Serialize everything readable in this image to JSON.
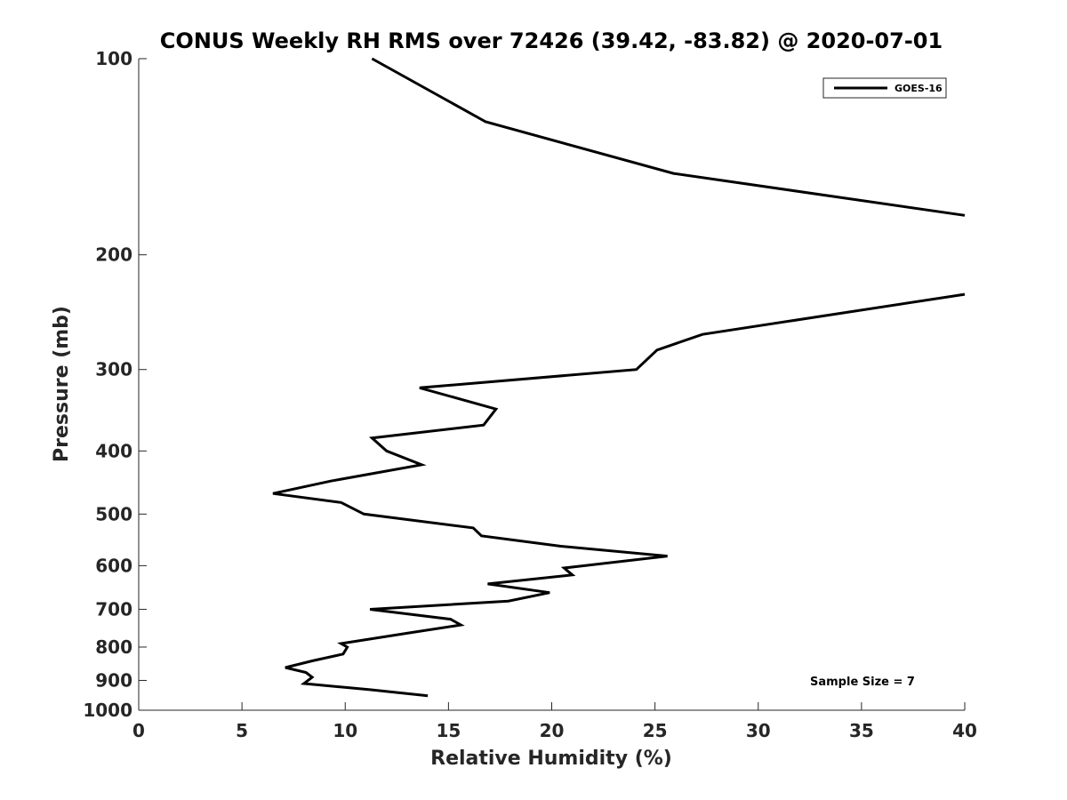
{
  "chart_data": {
    "type": "line",
    "title": "CONUS Weekly RH RMS over 72426 (39.42, -83.82) @ 2020-07-01",
    "xlabel": "Relative Humidity (%)",
    "ylabel": "Pressure (mb)",
    "xlim": [
      0,
      40
    ],
    "ylim": [
      100,
      1000
    ],
    "y_scale": "log",
    "y_reversed": true,
    "grid": false,
    "legend_position": "top-right",
    "x_ticks": [
      0,
      5,
      10,
      15,
      20,
      25,
      30,
      35,
      40
    ],
    "y_ticks": [
      100,
      200,
      300,
      400,
      500,
      600,
      700,
      800,
      900,
      1000
    ],
    "annotation": "Sample Size = 7",
    "series": [
      {
        "name": "GOES-16",
        "color": "#000000",
        "points": [
          [
            11.3,
            100
          ],
          [
            16.8,
            125
          ],
          [
            25.9,
            150
          ],
          [
            40.0,
            174
          ],
          [
            null,
            null
          ],
          [
            40.0,
            230
          ],
          [
            27.3,
            265
          ],
          [
            25.1,
            280
          ],
          [
            24.1,
            300
          ],
          [
            13.6,
            320
          ],
          [
            17.3,
            345
          ],
          [
            16.7,
            365
          ],
          [
            11.3,
            382
          ],
          [
            12.0,
            400
          ],
          [
            13.7,
            420
          ],
          [
            9.3,
            445
          ],
          [
            6.5,
            465
          ],
          [
            9.8,
            480
          ],
          [
            10.9,
            500
          ],
          [
            16.2,
            525
          ],
          [
            16.6,
            540
          ],
          [
            20.4,
            560
          ],
          [
            25.6,
            580
          ],
          [
            20.6,
            605
          ],
          [
            21.0,
            620
          ],
          [
            16.9,
            640
          ],
          [
            19.9,
            660
          ],
          [
            17.9,
            680
          ],
          [
            11.2,
            700
          ],
          [
            15.1,
            725
          ],
          [
            15.6,
            740
          ],
          [
            13.2,
            760
          ],
          [
            9.8,
            790
          ],
          [
            10.1,
            800
          ],
          [
            9.9,
            820
          ],
          [
            8.4,
            840
          ],
          [
            7.1,
            860
          ],
          [
            8.1,
            875
          ],
          [
            8.4,
            890
          ],
          [
            8.0,
            910
          ],
          [
            11.2,
            930
          ],
          [
            14.0,
            950
          ]
        ]
      }
    ]
  }
}
